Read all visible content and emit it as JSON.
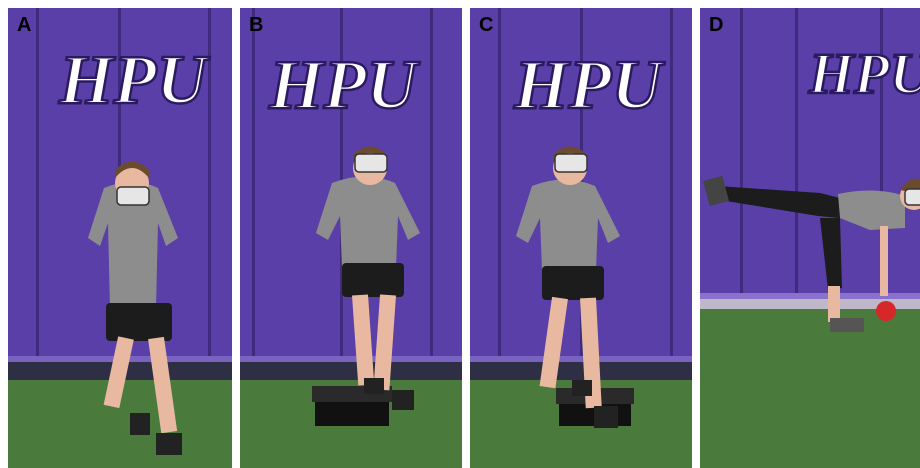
{
  "figure": {
    "panels": [
      {
        "label": "A",
        "logo_text": "HPU",
        "box": false
      },
      {
        "label": "B",
        "logo_text": "HPU",
        "box": true
      },
      {
        "label": "C",
        "logo_text": "HPU",
        "box": true
      },
      {
        "label": "D",
        "logo_text": "HPU",
        "box": false
      }
    ]
  },
  "colors": {
    "wall_purple": "#5b3fa8",
    "wall_seam": "#3f2b7e",
    "baseboard": "#2e2f45",
    "turf_green": "#4a7a3c",
    "shirt_gray": "#8d8d8d",
    "shorts_black": "#1c1c1c",
    "skin": "#e8b9a0",
    "kettlebell_red": "#d62828",
    "face_mask": "#e6e6e6"
  }
}
